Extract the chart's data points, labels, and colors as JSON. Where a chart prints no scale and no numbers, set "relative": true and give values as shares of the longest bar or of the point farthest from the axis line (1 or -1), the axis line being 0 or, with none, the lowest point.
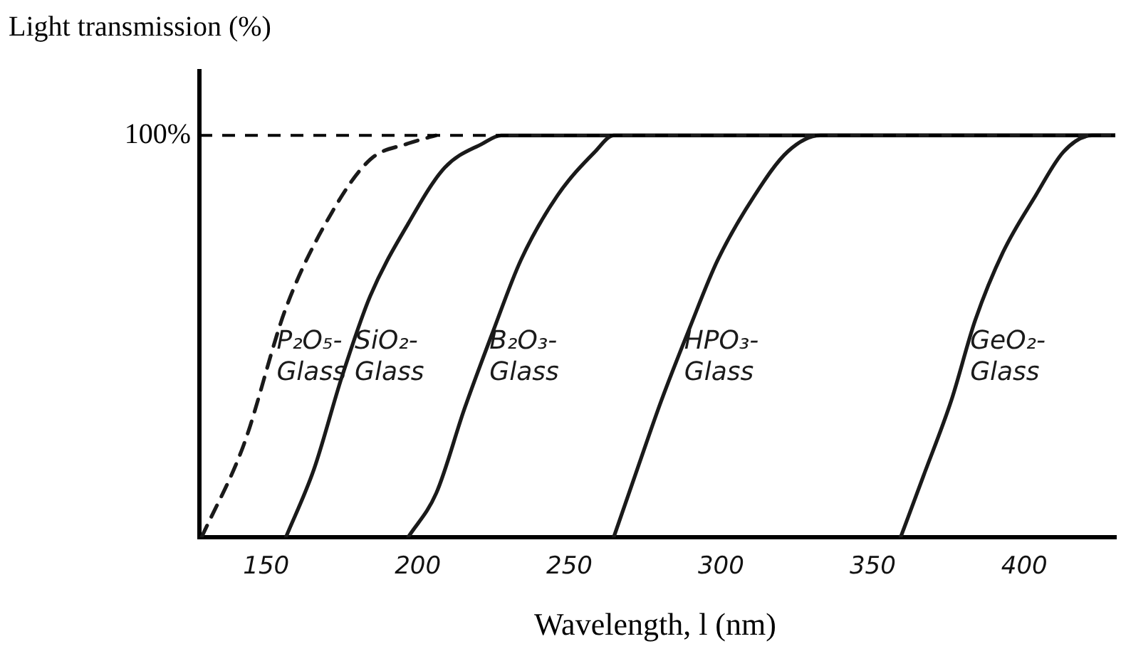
{
  "chart_data": {
    "type": "line",
    "relative": true,
    "ylabel": "Light transmission (%)",
    "xlabel": "Wavelength, l (nm)",
    "xlim": [
      128,
      430
    ],
    "xticks": [
      150,
      200,
      250,
      300,
      350,
      400
    ],
    "grid": false,
    "legend": false,
    "marker": "none",
    "line_style": "solid",
    "ref_lines": [
      {
        "axis": "y",
        "value": 1,
        "label": "100%",
        "line_style": "dashed",
        "color": "#000000"
      }
    ],
    "series": [
      {
        "name": "P₂O₅- Glass",
        "color": "#1a1a1a",
        "line_style": "dashed",
        "x": [
          128.7,
          142.6,
          156.5,
          171.8,
          184.3,
          196.8,
          206
        ],
        "values": [
          0,
          0.23,
          0.57,
          0.81,
          0.94,
          0.98,
          1
        ]
      },
      {
        "name": "SiO₂- Glass",
        "color": "#1a1a1a",
        "x": [
          156.5,
          165.8,
          175,
          184.3,
          196.8,
          208.9,
          221.4,
          227.5,
          430
        ],
        "values": [
          0,
          0.17,
          0.4,
          0.6,
          0.78,
          0.92,
          0.98,
          1,
          1
        ]
      },
      {
        "name": "B₂O₃- Glass",
        "color": "#1a1a1a",
        "x": [
          196.8,
          206.1,
          215.4,
          224.7,
          234,
          246,
          258.5,
          264.6,
          430
        ],
        "values": [
          0,
          0.11,
          0.32,
          0.51,
          0.69,
          0.85,
          0.96,
          1,
          1
        ]
      },
      {
        "name": "HPO₃- Glass",
        "color": "#1a1a1a",
        "x": [
          264.6,
          272.4,
          280.3,
          289.6,
          298.9,
          311,
          322,
          332.7,
          430
        ],
        "values": [
          0,
          0.17,
          0.34,
          0.52,
          0.69,
          0.85,
          0.96,
          1,
          1
        ]
      },
      {
        "name": "GeO₂- Glass",
        "color": "#1a1a1a",
        "x": [
          359.2,
          366.6,
          375.9,
          383.8,
          393,
          403.7,
          413,
          422.3,
          430
        ],
        "values": [
          0,
          0.15,
          0.34,
          0.54,
          0.71,
          0.85,
          0.96,
          1,
          1
        ]
      }
    ]
  }
}
